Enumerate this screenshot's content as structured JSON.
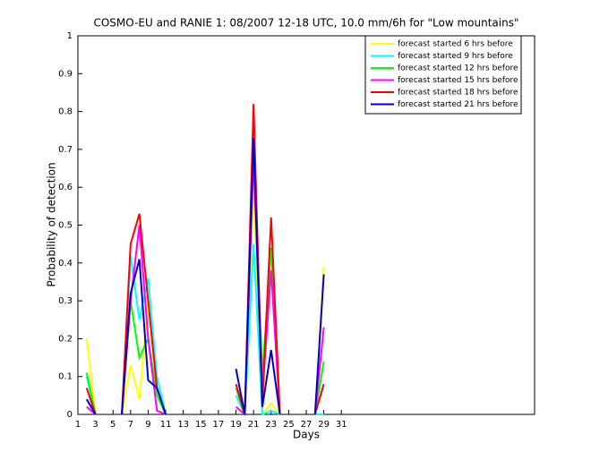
{
  "chart_data": {
    "type": "line",
    "title": "COSMO-EU and RANIE 1: 08/2007 12-18 UTC, 10.0 mm/6h for \"Low mountains\"",
    "x_label": "Days",
    "y_label": "Probability of detection",
    "x": [
      2,
      3,
      4,
      5,
      6,
      7,
      8,
      9,
      10,
      11,
      12,
      13,
      14,
      15,
      16,
      17,
      18,
      19,
      20,
      21,
      22,
      23,
      24,
      25,
      26,
      27,
      28,
      29
    ],
    "series": [
      {
        "name": "forecast started 6 hrs before",
        "color": "#ffff00",
        "values": [
          0.2,
          0,
          null,
          null,
          0,
          0.13,
          0.04,
          0.3,
          0.05,
          0,
          null,
          null,
          null,
          null,
          null,
          null,
          null,
          0.05,
          0,
          0.6,
          0,
          0.03,
          0,
          null,
          null,
          null,
          0,
          0.39
        ]
      },
      {
        "name": "forecast started 9 hrs before",
        "color": "#00ffff",
        "values": [
          0.1,
          0,
          null,
          null,
          0,
          0.42,
          0.25,
          0.36,
          0.1,
          0,
          null,
          null,
          null,
          null,
          null,
          null,
          null,
          0.05,
          0,
          0.45,
          0,
          0.01,
          0,
          null,
          null,
          null,
          0,
          0
        ]
      },
      {
        "name": "forecast started 12 hrs before",
        "color": "#00ff00",
        "values": [
          0.11,
          0,
          null,
          null,
          0,
          0.3,
          0.15,
          0.2,
          0.05,
          0,
          null,
          null,
          null,
          null,
          null,
          null,
          null,
          0.07,
          0,
          0.7,
          0.1,
          0.44,
          0,
          null,
          null,
          null,
          0,
          0.14
        ]
      },
      {
        "name": "forecast started 15 hrs before",
        "color": "#ff00ff",
        "values": [
          0.02,
          0,
          null,
          null,
          0,
          0.3,
          0.5,
          0.2,
          0.01,
          0,
          null,
          null,
          null,
          null,
          null,
          null,
          null,
          0.02,
          0,
          0.68,
          0.05,
          0.38,
          0,
          null,
          null,
          null,
          0,
          0.23
        ]
      },
      {
        "name": "forecast started 18 hrs before",
        "color": "#ff0000",
        "values": [
          0.07,
          0,
          null,
          null,
          0,
          0.45,
          0.53,
          0.3,
          0.07,
          0,
          null,
          null,
          null,
          null,
          null,
          null,
          null,
          0.08,
          0,
          0.82,
          0.03,
          0.52,
          0,
          null,
          null,
          null,
          0,
          0.08
        ]
      },
      {
        "name": "forecast started 21 hrs before",
        "color": "#0000cc",
        "values": [
          0.04,
          0,
          null,
          null,
          0,
          0.32,
          0.41,
          0.09,
          0.07,
          0,
          null,
          null,
          null,
          null,
          null,
          null,
          null,
          0.12,
          0,
          0.73,
          0.02,
          0.17,
          0,
          null,
          null,
          null,
          0,
          0.37
        ]
      }
    ],
    "xlim": [
      1,
      53
    ],
    "xticks": [
      1,
      3,
      5,
      7,
      9,
      11,
      13,
      15,
      17,
      19,
      21,
      23,
      25,
      27,
      29,
      31
    ],
    "ylim": [
      0,
      1
    ],
    "yticks": [
      0,
      0.1,
      0.2,
      0.3,
      0.4,
      0.5,
      0.6,
      0.7,
      0.8,
      0.9,
      1
    ],
    "grid": false,
    "legend": "upper right"
  }
}
